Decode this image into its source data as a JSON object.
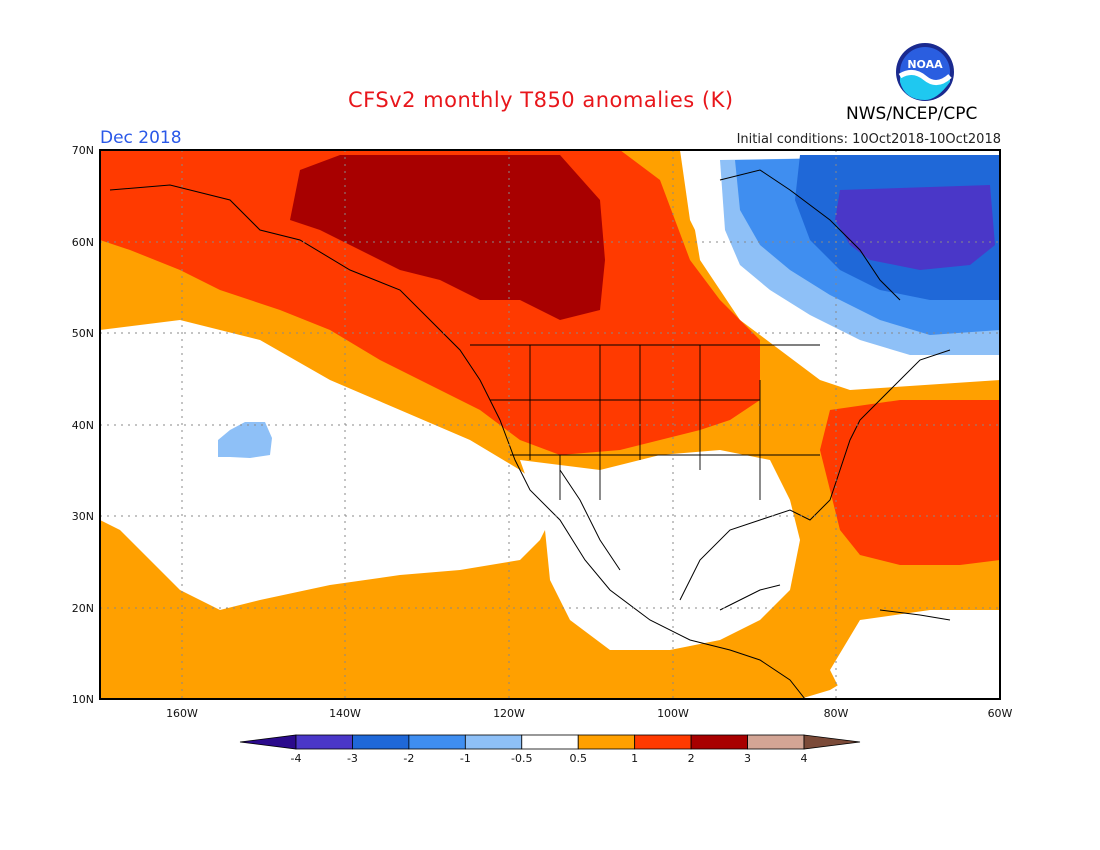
{
  "title": "CFSv2 monthly T850 anomalies (K)",
  "valid_month": "Dec 2018",
  "initial_conditions": "Initial conditions: 10Oct2018-10Oct2018",
  "agency": "NWS/NCEP/CPC",
  "logo_text": "NOAA",
  "lat_labels": [
    "70N",
    "60N",
    "50N",
    "40N",
    "30N",
    "20N",
    "10N"
  ],
  "lon_labels": [
    "160W",
    "140W",
    "120W",
    "100W",
    "80W",
    "60W"
  ],
  "colorbar": {
    "labels": [
      "-4",
      "-3",
      "-2",
      "-1",
      "-0.5",
      "0.5",
      "1",
      "2",
      "3",
      "4"
    ],
    "colors": [
      "#2b0a8c",
      "#4a37c8",
      "#1f68d8",
      "#3f8ef0",
      "#8ec0f7",
      "#ffffff",
      "#ffa000",
      "#ff3a00",
      "#a80000",
      "#d3a595",
      "#7b4a38"
    ]
  },
  "colors": {
    "very_high": "#a80000",
    "high": "#ff3a00",
    "moderate": "#ffa000",
    "neutral": "#ffffff",
    "slight_cold": "#8ec0f7",
    "cold": "#3f8ef0",
    "colder": "#1f68d8",
    "coldest": "#4a37c8"
  }
}
